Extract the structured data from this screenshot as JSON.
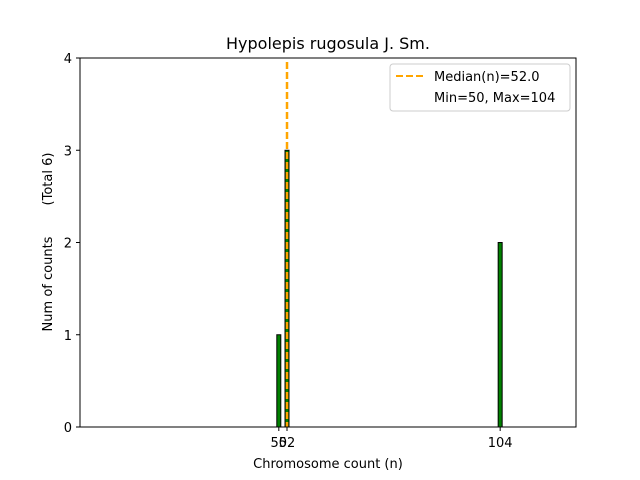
{
  "chart_data": {
    "type": "bar",
    "title": "Hypolepis rugosula J. Sm.",
    "xlabel": "Chromosome count (n)",
    "ylabel": "Num of counts",
    "ylabel_total": "(Total 6)",
    "xlim": [
      1.5,
      122.5
    ],
    "ylim": [
      0,
      4
    ],
    "xticks": [
      50,
      52,
      104
    ],
    "xtick_labels": [
      "50",
      "52",
      "104"
    ],
    "yticks": [
      0,
      1,
      2,
      3,
      4
    ],
    "bars": [
      {
        "x": 50,
        "value": 1
      },
      {
        "x": 52,
        "value": 3
      },
      {
        "x": 104,
        "value": 2
      }
    ],
    "bar_color": "#008000",
    "bar_edge_color": "#000000",
    "median": 52.0,
    "median_color": "#FFA500",
    "legend": {
      "placement": "top-right",
      "median_label": "Median(n)=52.0",
      "range_label": "Min=50, Max=104"
    }
  }
}
